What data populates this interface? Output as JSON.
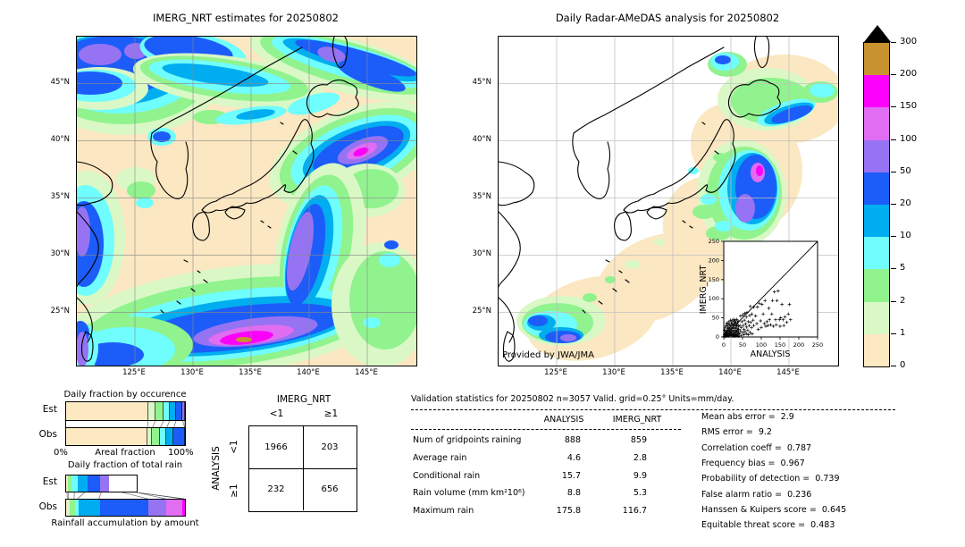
{
  "left_map": {
    "title": "IMERG_NRT estimates for 20250802",
    "yticks": [
      "45°N",
      "40°N",
      "35°N",
      "30°N",
      "25°N"
    ],
    "xticks": [
      "125°E",
      "130°E",
      "135°E",
      "140°E",
      "145°E"
    ]
  },
  "right_map": {
    "title": "Daily Radar-AMeDAS analysis for 20250802",
    "yticks": [
      "45°N",
      "40°N",
      "35°N",
      "30°N",
      "25°N"
    ],
    "xticks": [
      "125°E",
      "130°E",
      "135°E",
      "140°E",
      "145°E"
    ],
    "credit": "Provided by JWA/JMA"
  },
  "colorbar": {
    "labels": [
      "300",
      "200",
      "150",
      "100",
      "50",
      "20",
      "10",
      "5",
      "2",
      "1",
      "0"
    ],
    "colors": [
      "#c8922e",
      "#fb00fb",
      "#e06df2",
      "#9673f3",
      "#1c5cf8",
      "#00adf0",
      "#70fdfd",
      "#90f38e",
      "#d9f8c5",
      "#fce9c2"
    ]
  },
  "palette": {
    "0-1": "#fce9c2",
    "1-2": "#d9f8c5",
    "2-5": "#90f38e",
    "5-10": "#70fdfd",
    "10-20": "#00adf0",
    "20-50": "#1c5cf8",
    "50-100": "#9673f3",
    "100-150": "#e06df2",
    "150-200": "#fb00fb",
    "200-300": "#c8922e"
  },
  "stats": {
    "title": "Validation statistics for 20250802  n=3057 Valid. grid=0.25° Units=mm/day.",
    "columns": [
      "ANALYSIS",
      "IMERG_NRT"
    ],
    "rows": [
      {
        "label": "Num of gridpoints raining",
        "analysis": "888",
        "imerg": "859"
      },
      {
        "label": "Average rain",
        "analysis": "4.6",
        "imerg": "2.8"
      },
      {
        "label": "Conditional rain",
        "analysis": "15.7",
        "imerg": "9.9"
      },
      {
        "label": "Rain volume (mm km²10⁶)",
        "analysis": "8.8",
        "imerg": "5.3"
      },
      {
        "label": "Maximum rain",
        "analysis": "175.8",
        "imerg": "116.7"
      }
    ],
    "extra": [
      {
        "label": "Mean abs error",
        "value": "2.9"
      },
      {
        "label": "RMS error",
        "value": "9.2"
      },
      {
        "label": "Correlation coeff",
        "value": "0.787"
      },
      {
        "label": "Frequency bias",
        "value": "0.967"
      },
      {
        "label": "Probability of detection",
        "value": "0.739"
      },
      {
        "label": "False alarm ratio",
        "value": "0.236"
      },
      {
        "label": "Hanssen & Kuipers score",
        "value": "0.645"
      },
      {
        "label": "Equitable threat score",
        "value": "0.483"
      }
    ]
  },
  "chart_data": [
    {
      "type": "bar",
      "name": "daily_fraction_by_occurrence",
      "title": "Daily fraction by occurence",
      "stacked": true,
      "orientation": "horizontal",
      "categories": [
        "Est",
        "Obs"
      ],
      "xlabel": "Areal fraction",
      "xtick_labels": [
        "0%",
        "100%"
      ],
      "bins": [
        "0-1",
        "1-2",
        "2-5",
        "5-10",
        "10-20",
        "20-50",
        "50-100"
      ],
      "series": [
        {
          "name": "Est",
          "fractions": [
            0.69,
            0.06,
            0.07,
            0.05,
            0.055,
            0.055,
            0.02
          ]
        },
        {
          "name": "Obs",
          "fractions": [
            0.685,
            0.04,
            0.065,
            0.055,
            0.06,
            0.095,
            0
          ]
        }
      ]
    },
    {
      "type": "bar",
      "name": "daily_fraction_of_total_rain",
      "title": "Daily fraction of total rain",
      "caption": "Rainfall accumulation by amount",
      "stacked": true,
      "orientation": "horizontal",
      "categories": [
        "Est",
        "Obs"
      ],
      "bins": [
        "0-1",
        "1-2",
        "2-5",
        "5-10",
        "10-20",
        "20-50",
        "50-100",
        "100-150",
        "150-200"
      ],
      "series": [
        {
          "name": "Est",
          "fractions": [
            0.015,
            0.012,
            0.05,
            0.085,
            0.14,
            0.18,
            0.12,
            0,
            0
          ]
        },
        {
          "name": "Obs",
          "fractions": [
            0.017,
            0.01,
            0.047,
            0.03,
            0.18,
            0.41,
            0.148,
            0.135,
            0.023
          ]
        }
      ]
    },
    {
      "type": "table",
      "name": "contingency_table",
      "title": "IMERG_NRT",
      "row_axis": "ANALYSIS",
      "col_labels": [
        "<1",
        "≥1"
      ],
      "row_labels": [
        "<1",
        "≥1"
      ],
      "values": [
        [
          1966,
          203
        ],
        [
          232,
          656
        ]
      ]
    },
    {
      "type": "scatter",
      "name": "analysis_vs_imerg_scatter",
      "xlabel": "ANALYSIS",
      "ylabel": "IMERG_NRT",
      "xlim": [
        0,
        250
      ],
      "ylim": [
        0,
        250
      ],
      "ticks": [
        0,
        50,
        100,
        150,
        200,
        250
      ],
      "diagonal": true,
      "points": [
        [
          1,
          2
        ],
        [
          2,
          6
        ],
        [
          3,
          1
        ],
        [
          3,
          10
        ],
        [
          4,
          4
        ],
        [
          5,
          8
        ],
        [
          5,
          15
        ],
        [
          6,
          2
        ],
        [
          7,
          6
        ],
        [
          7,
          12
        ],
        [
          8,
          18
        ],
        [
          9,
          3
        ],
        [
          9,
          9
        ],
        [
          10,
          14
        ],
        [
          11,
          6
        ],
        [
          11,
          22
        ],
        [
          12,
          2
        ],
        [
          12,
          10
        ],
        [
          13,
          17
        ],
        [
          14,
          5
        ],
        [
          14,
          25
        ],
        [
          15,
          8
        ],
        [
          15,
          13
        ],
        [
          16,
          3
        ],
        [
          16,
          20
        ],
        [
          17,
          10
        ],
        [
          18,
          6
        ],
        [
          18,
          28
        ],
        [
          19,
          15
        ],
        [
          20,
          4
        ],
        [
          20,
          22
        ],
        [
          21,
          9
        ],
        [
          22,
          14
        ],
        [
          22,
          30
        ],
        [
          23,
          6
        ],
        [
          24,
          18
        ],
        [
          25,
          3
        ],
        [
          25,
          25
        ],
        [
          26,
          10
        ],
        [
          27,
          32
        ],
        [
          28,
          7
        ],
        [
          28,
          16
        ],
        [
          29,
          22
        ],
        [
          30,
          5
        ],
        [
          30,
          35
        ],
        [
          31,
          12
        ],
        [
          32,
          25
        ],
        [
          33,
          8
        ],
        [
          33,
          18
        ],
        [
          34,
          30
        ],
        [
          35,
          3
        ],
        [
          35,
          14
        ],
        [
          36,
          22
        ],
        [
          37,
          8
        ],
        [
          37,
          38
        ],
        [
          38,
          16
        ],
        [
          39,
          28
        ],
        [
          40,
          10
        ],
        [
          40,
          20
        ],
        [
          2,
          18
        ],
        [
          4,
          24
        ],
        [
          6,
          30
        ],
        [
          8,
          36
        ],
        [
          10,
          28
        ],
        [
          12,
          34
        ],
        [
          14,
          40
        ],
        [
          16,
          32
        ],
        [
          18,
          44
        ],
        [
          20,
          36
        ],
        [
          22,
          42
        ],
        [
          24,
          34
        ],
        [
          26,
          46
        ],
        [
          28,
          40
        ],
        [
          30,
          44
        ],
        [
          32,
          38
        ],
        [
          34,
          46
        ],
        [
          36,
          34
        ],
        [
          38,
          42
        ],
        [
          26,
          2
        ],
        [
          31,
          2
        ],
        [
          36,
          5
        ],
        [
          39,
          2
        ],
        [
          42,
          8
        ],
        [
          43,
          30
        ],
        [
          44,
          16
        ],
        [
          45,
          55
        ],
        [
          46,
          4
        ],
        [
          47,
          24
        ],
        [
          48,
          40
        ],
        [
          50,
          12
        ],
        [
          51,
          58
        ],
        [
          52,
          30
        ],
        [
          53,
          6
        ],
        [
          54,
          20
        ],
        [
          55,
          44
        ],
        [
          56,
          62
        ],
        [
          57,
          14
        ],
        [
          58,
          34
        ],
        [
          60,
          8
        ],
        [
          60,
          52
        ],
        [
          61,
          26
        ],
        [
          62,
          64
        ],
        [
          64,
          18
        ],
        [
          65,
          40
        ],
        [
          66,
          6
        ],
        [
          68,
          30
        ],
        [
          69,
          56
        ],
        [
          70,
          12
        ],
        [
          71,
          80
        ],
        [
          72,
          38
        ],
        [
          74,
          24
        ],
        [
          75,
          60
        ],
        [
          76,
          8
        ],
        [
          78,
          44
        ],
        [
          80,
          30
        ],
        [
          80,
          78
        ],
        [
          85,
          55
        ],
        [
          88,
          35
        ],
        [
          90,
          78
        ],
        [
          92,
          20
        ],
        [
          95,
          88
        ],
        [
          98,
          42
        ],
        [
          100,
          25
        ],
        [
          102,
          85
        ],
        [
          105,
          60
        ],
        [
          108,
          35
        ],
        [
          110,
          95
        ],
        [
          112,
          28
        ],
        [
          115,
          40
        ],
        [
          118,
          30
        ],
        [
          120,
          75
        ],
        [
          122,
          45
        ],
        [
          125,
          32
        ],
        [
          128,
          60
        ],
        [
          130,
          95
        ],
        [
          132,
          28
        ],
        [
          135,
          118
        ],
        [
          138,
          45
        ],
        [
          140,
          32
        ],
        [
          142,
          95
        ],
        [
          145,
          120
        ],
        [
          148,
          45
        ],
        [
          150,
          28
        ],
        [
          152,
          50
        ],
        [
          155,
          85
        ],
        [
          158,
          45
        ],
        [
          160,
          30
        ],
        [
          163,
          52
        ],
        [
          168,
          38
        ],
        [
          172,
          60
        ],
        [
          175,
          85
        ],
        [
          178,
          45
        ]
      ]
    }
  ]
}
